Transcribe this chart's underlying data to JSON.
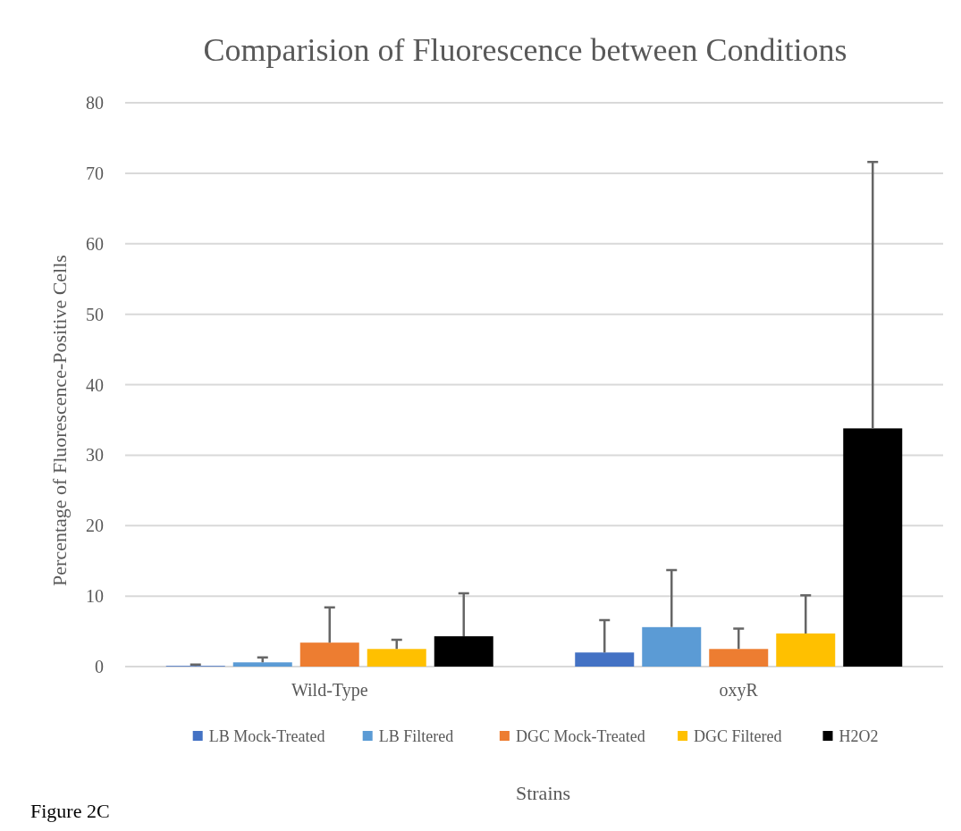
{
  "chart_data": {
    "type": "bar",
    "title": "Comparision  of Fluorescence  between Conditions",
    "xlabel": "Strains",
    "ylabel": "Percentage of Fluorescence-Positive Cells",
    "categories": [
      "Wild-Type",
      "oxyR"
    ],
    "series": [
      {
        "name": "LB Mock-Treated",
        "color": "#4472c4",
        "values": [
          0.1,
          2.0
        ],
        "errors": [
          [
            0.1,
            0.3
          ],
          [
            2.0,
            6.6
          ]
        ]
      },
      {
        "name": "LB Filtered",
        "color": "#5b9bd5",
        "values": [
          0.6,
          5.6
        ],
        "errors": [
          [
            0.6,
            1.3
          ],
          [
            5.6,
            13.7
          ]
        ]
      },
      {
        "name": "DGC Mock-Treated",
        "color": "#ed7d31",
        "values": [
          3.4,
          2.5
        ],
        "errors": [
          [
            3.4,
            8.4
          ],
          [
            2.5,
            5.4
          ]
        ]
      },
      {
        "name": "DGC Filtered",
        "color": "#ffc000",
        "values": [
          2.5,
          4.7
        ],
        "errors": [
          [
            2.5,
            3.8
          ],
          [
            4.7,
            10.1
          ]
        ]
      },
      {
        "name": "H2O2",
        "color": "#000000",
        "values": [
          4.3,
          33.8
        ],
        "errors": [
          [
            4.3,
            10.4
          ],
          [
            33.8,
            71.6
          ]
        ]
      }
    ],
    "ylim": [
      0,
      80
    ],
    "yticks": [
      0,
      10,
      20,
      30,
      40,
      50,
      60,
      70,
      80
    ],
    "grid": "y",
    "legend": "bottom",
    "annotations": [
      "Figure 2C"
    ]
  }
}
